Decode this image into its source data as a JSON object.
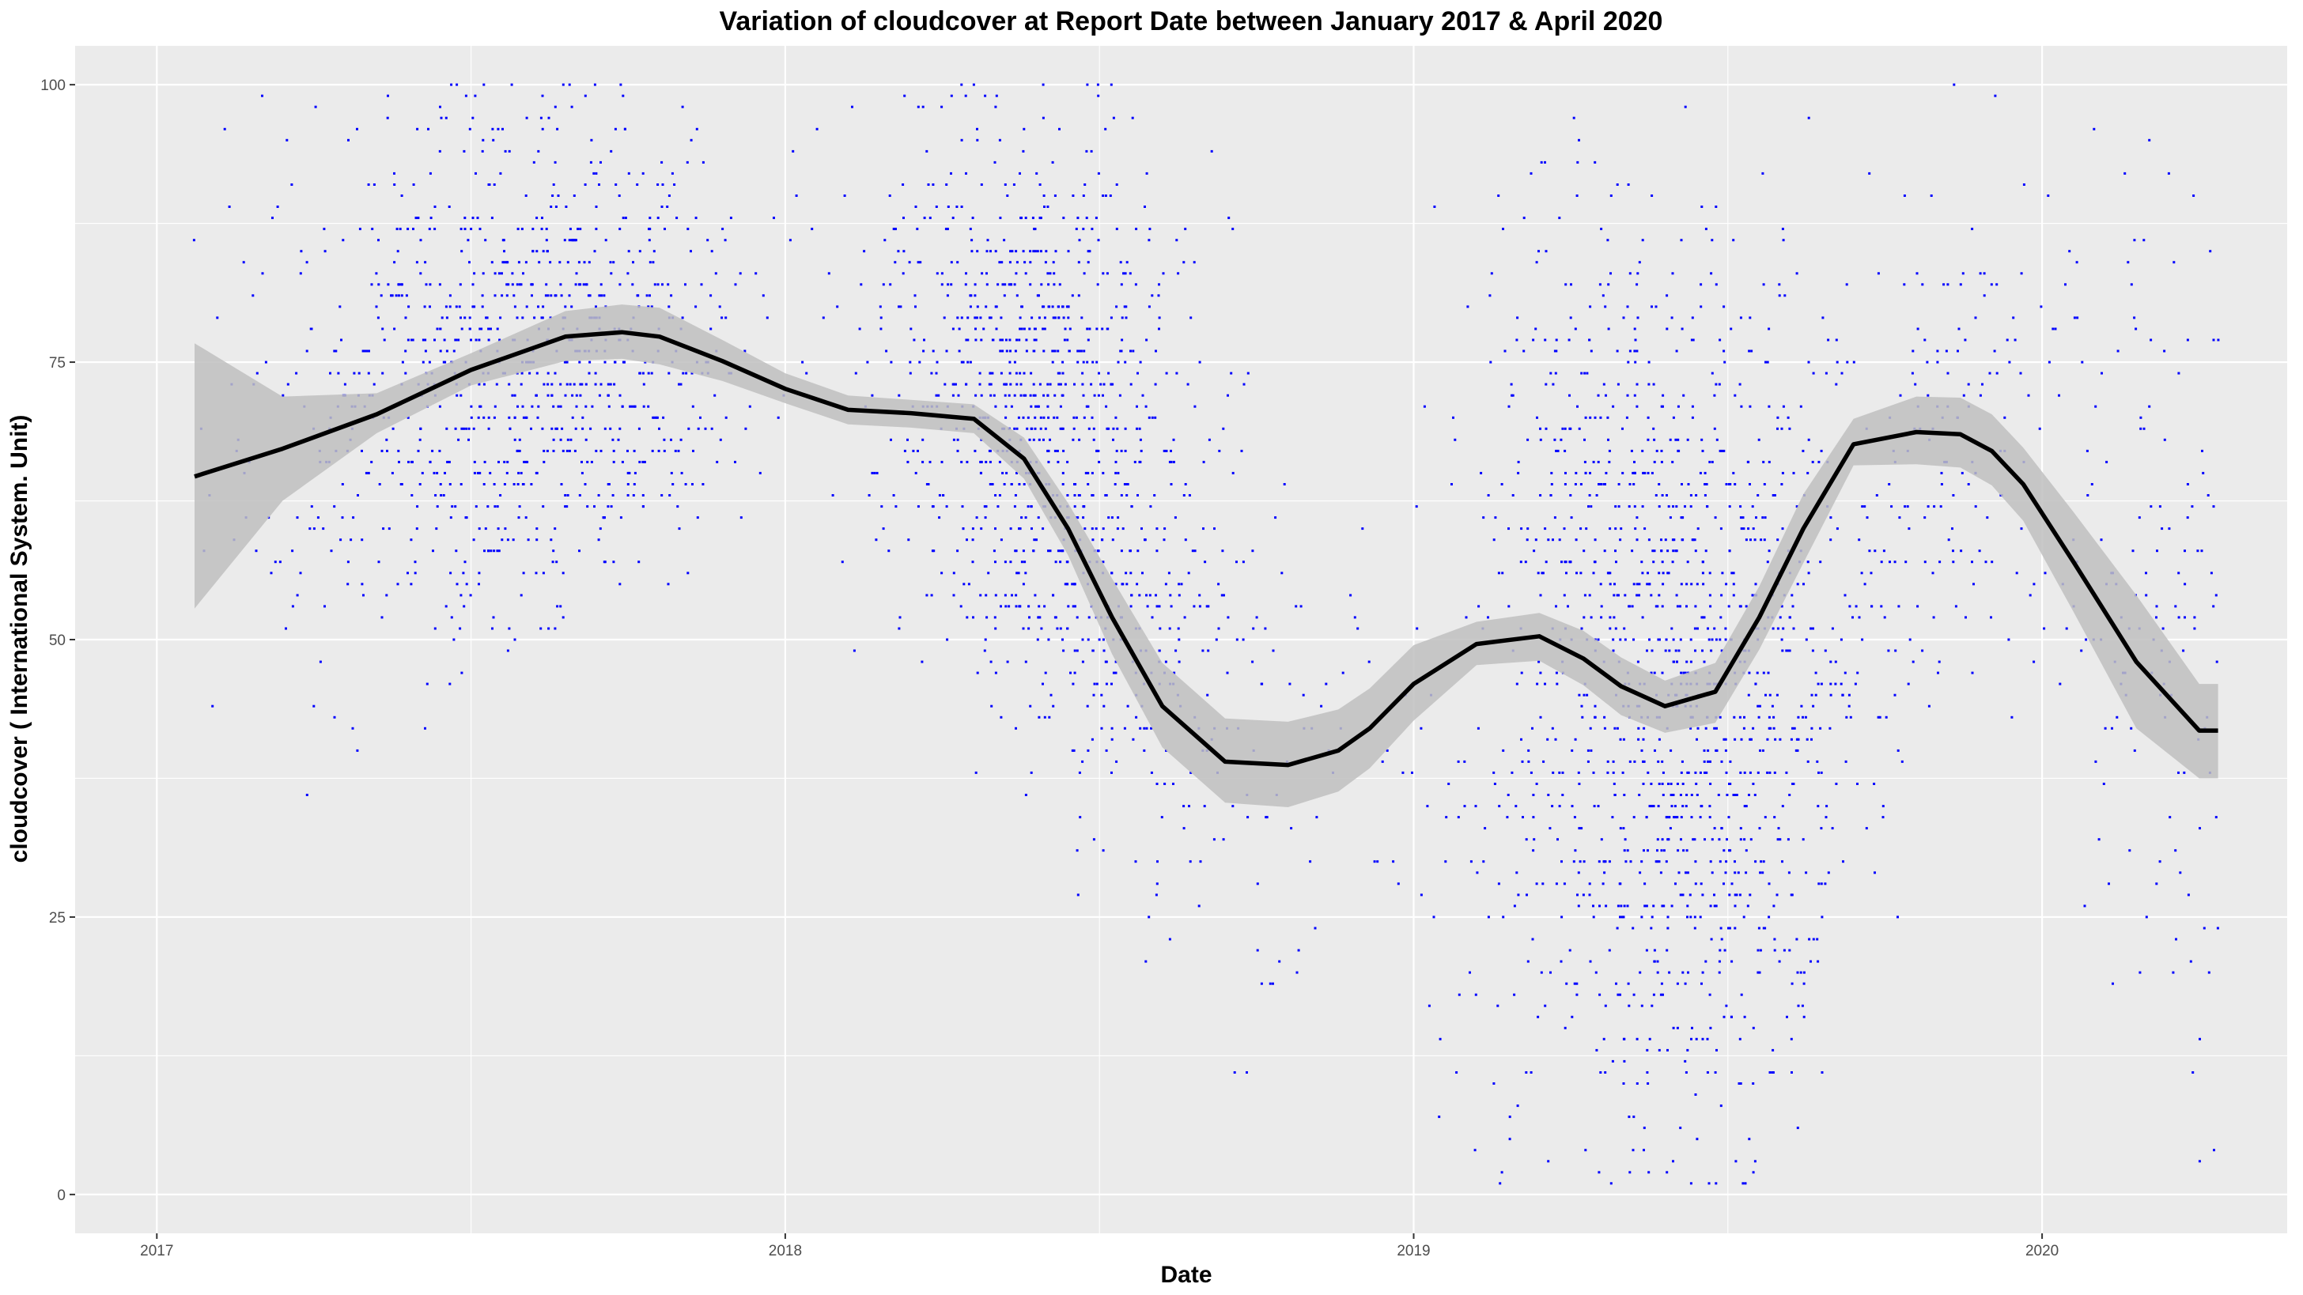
{
  "chart_data": {
    "type": "scatter",
    "title": "Variation of  cloudcover  at Report Date between January 2017 & April 2020",
    "xlabel": "Date",
    "ylabel": "cloudcover ( International System. Unit)",
    "xlim": [
      2016.87,
      2020.39
    ],
    "ylim": [
      -3.5,
      103.5
    ],
    "x_ticks": [
      {
        "value": 2017,
        "label": "2017"
      },
      {
        "value": 2018,
        "label": "2018"
      },
      {
        "value": 2019,
        "label": "2019"
      },
      {
        "value": 2020,
        "label": "2020"
      }
    ],
    "y_ticks": [
      {
        "value": 0,
        "label": "0"
      },
      {
        "value": 25,
        "label": "25"
      },
      {
        "value": 50,
        "label": "50"
      },
      {
        "value": 75,
        "label": "75"
      },
      {
        "value": 100,
        "label": "100"
      }
    ],
    "background": "#ebebeb",
    "point_color": "#0000ff",
    "line_color": "#000000",
    "band_color": "#c0c0c0",
    "point_density_profile": [
      {
        "x": 2017.06,
        "weight": 0.05,
        "center": 70,
        "spread": 30
      },
      {
        "x": 2017.2,
        "weight": 0.15,
        "center": 70,
        "spread": 25
      },
      {
        "x": 2017.35,
        "weight": 0.45,
        "center": 72,
        "spread": 22
      },
      {
        "x": 2017.5,
        "weight": 0.9,
        "center": 74,
        "spread": 22
      },
      {
        "x": 2017.65,
        "weight": 1.0,
        "center": 76,
        "spread": 20
      },
      {
        "x": 2017.8,
        "weight": 0.55,
        "center": 78,
        "spread": 18
      },
      {
        "x": 2017.95,
        "weight": 0.06,
        "center": 75,
        "spread": 20
      },
      {
        "x": 2018.1,
        "weight": 0.06,
        "center": 72,
        "spread": 20
      },
      {
        "x": 2018.25,
        "weight": 0.6,
        "center": 72,
        "spread": 22
      },
      {
        "x": 2018.38,
        "weight": 1.6,
        "center": 70,
        "spread": 25
      },
      {
        "x": 2018.5,
        "weight": 1.3,
        "center": 66,
        "spread": 28
      },
      {
        "x": 2018.65,
        "weight": 0.4,
        "center": 55,
        "spread": 30
      },
      {
        "x": 2018.8,
        "weight": 0.12,
        "center": 42,
        "spread": 30
      },
      {
        "x": 2018.95,
        "weight": 0.04,
        "center": 40,
        "spread": 30
      },
      {
        "x": 2019.1,
        "weight": 0.2,
        "center": 45,
        "spread": 35
      },
      {
        "x": 2019.25,
        "weight": 1.0,
        "center": 50,
        "spread": 38
      },
      {
        "x": 2019.42,
        "weight": 1.8,
        "center": 46,
        "spread": 38
      },
      {
        "x": 2019.55,
        "weight": 1.2,
        "center": 45,
        "spread": 36
      },
      {
        "x": 2019.7,
        "weight": 0.3,
        "center": 55,
        "spread": 30
      },
      {
        "x": 2019.85,
        "weight": 0.35,
        "center": 66,
        "spread": 24
      },
      {
        "x": 2020.0,
        "weight": 0.1,
        "center": 65,
        "spread": 25
      },
      {
        "x": 2020.15,
        "weight": 0.3,
        "center": 55,
        "spread": 35
      },
      {
        "x": 2020.28,
        "weight": 0.3,
        "center": 40,
        "spread": 35
      }
    ],
    "series": [
      {
        "name": "loess_fit",
        "x": [
          2017.06,
          2017.2,
          2017.35,
          2017.5,
          2017.65,
          2017.74,
          2017.8,
          2017.9,
          2018.0,
          2018.1,
          2018.2,
          2018.3,
          2018.38,
          2018.45,
          2018.52,
          2018.6,
          2018.7,
          2018.8,
          2018.88,
          2018.93,
          2019.0,
          2019.1,
          2019.2,
          2019.27,
          2019.33,
          2019.4,
          2019.48,
          2019.55,
          2019.62,
          2019.7,
          2019.8,
          2019.87,
          2019.92,
          2019.97,
          2020.05,
          2020.15,
          2020.25,
          2020.28
        ],
        "y": [
          64.7,
          67.2,
          70.3,
          74.3,
          77.3,
          77.7,
          77.3,
          75.1,
          72.6,
          70.7,
          70.4,
          69.9,
          66.3,
          60.0,
          52.0,
          44.0,
          39.0,
          38.7,
          40.0,
          42.0,
          46.0,
          49.6,
          50.3,
          48.3,
          45.8,
          44.0,
          45.3,
          52.0,
          60.0,
          67.6,
          68.7,
          68.5,
          67.0,
          64.0,
          57.0,
          48.0,
          41.8,
          41.8
        ],
        "ci_low": [
          52.8,
          62.5,
          68.6,
          72.9,
          75.1,
          75.3,
          74.8,
          73.3,
          71.3,
          69.4,
          69.1,
          68.6,
          64.5,
          57.6,
          48.7,
          40.3,
          35.3,
          34.9,
          36.3,
          38.4,
          42.7,
          47.7,
          48.1,
          45.9,
          43.2,
          41.6,
          42.5,
          49.1,
          56.9,
          65.7,
          65.8,
          65.5,
          63.9,
          60.7,
          52.5,
          42.0,
          37.5,
          37.5
        ],
        "ci_high": [
          76.7,
          71.9,
          72.2,
          75.8,
          79.6,
          80.2,
          79.9,
          77.0,
          74.0,
          72.0,
          71.6,
          71.2,
          68.2,
          62.3,
          55.5,
          47.9,
          42.9,
          42.6,
          43.7,
          45.6,
          49.5,
          51.6,
          52.4,
          50.8,
          48.4,
          46.3,
          47.9,
          54.8,
          63.1,
          69.9,
          71.9,
          71.8,
          70.3,
          67.3,
          61.5,
          54.0,
          46.0,
          46.0
        ]
      }
    ]
  }
}
